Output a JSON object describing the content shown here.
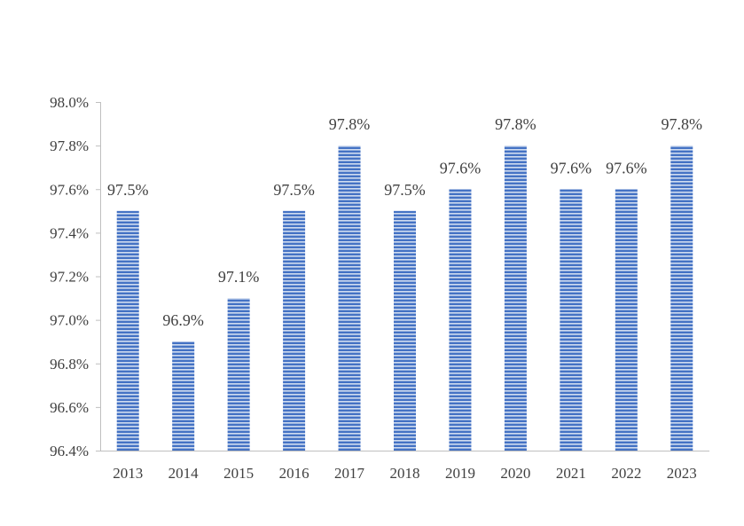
{
  "chart_data": {
    "type": "bar",
    "title": "",
    "xlabel": "",
    "ylabel": "",
    "categories": [
      "2013",
      "2014",
      "2015",
      "2016",
      "2017",
      "2018",
      "2019",
      "2020",
      "2021",
      "2022",
      "2023"
    ],
    "values": [
      97.5,
      96.9,
      97.1,
      97.5,
      97.8,
      97.5,
      97.6,
      97.8,
      97.6,
      97.6,
      97.8
    ],
    "data_labels": [
      "97.5%",
      "96.9%",
      "97.1%",
      "97.5%",
      "97.8%",
      "97.5%",
      "97.6%",
      "97.8%",
      "97.6%",
      "97.6%",
      "97.8%"
    ],
    "ylim": [
      96.4,
      98.0
    ],
    "yticks": [
      96.4,
      96.6,
      96.8,
      97.0,
      97.2,
      97.4,
      97.6,
      97.8,
      98.0
    ],
    "ytick_labels": [
      "96.4%",
      "96.6%",
      "96.8%",
      "97.0%",
      "97.2%",
      "97.4%",
      "97.6%",
      "97.8%",
      "98.0%"
    ],
    "grid": false,
    "legend": "none",
    "colors": {
      "bar_fill": "#4472c4",
      "bar_stripe": "#ffffff",
      "axis": "#bfbfbf",
      "text": "#404040"
    }
  }
}
